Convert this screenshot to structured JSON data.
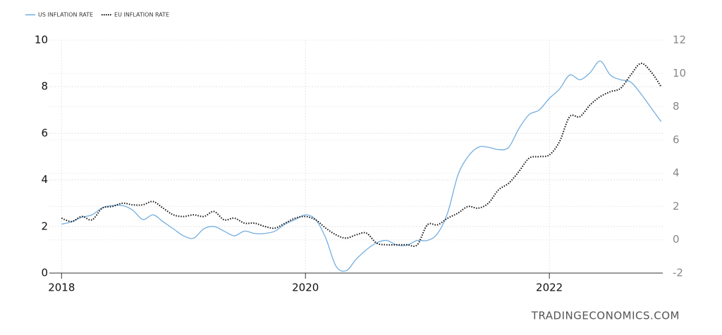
{
  "chart_data": {
    "type": "line",
    "watermark": "TRADINGECONOMICS.COM",
    "x": [
      2018,
      2018.0833,
      2018.1667,
      2018.25,
      2018.3333,
      2018.4167,
      2018.5,
      2018.5833,
      2018.6667,
      2018.75,
      2018.8333,
      2018.9167,
      2019,
      2019.0833,
      2019.1667,
      2019.25,
      2019.3333,
      2019.4167,
      2019.5,
      2019.5833,
      2019.6667,
      2019.75,
      2019.8333,
      2019.9167,
      2020,
      2020.0833,
      2020.1667,
      2020.25,
      2020.3333,
      2020.4167,
      2020.5,
      2020.5833,
      2020.6667,
      2020.75,
      2020.8333,
      2020.9167,
      2021,
      2021.0833,
      2021.1667,
      2021.25,
      2021.3333,
      2021.4167,
      2021.5,
      2021.5833,
      2021.6667,
      2021.75,
      2021.8333,
      2021.9167,
      2022,
      2022.0833,
      2022.1667,
      2022.25,
      2022.3333,
      2022.4167,
      2022.5,
      2022.5833,
      2022.6667,
      2022.75,
      2022.8333,
      2022.9167
    ],
    "series": [
      {
        "name": "US INFLATION RATE",
        "color": "#74aee0",
        "style": "solid",
        "axis": "y",
        "values": [
          2.1,
          2.2,
          2.4,
          2.5,
          2.8,
          2.9,
          2.9,
          2.7,
          2.3,
          2.5,
          2.2,
          1.9,
          1.6,
          1.5,
          1.9,
          2.0,
          1.8,
          1.6,
          1.8,
          1.7,
          1.7,
          1.8,
          2.1,
          2.3,
          2.5,
          2.3,
          1.5,
          0.3,
          0.1,
          0.6,
          1.0,
          1.3,
          1.4,
          1.2,
          1.2,
          1.4,
          1.4,
          1.7,
          2.6,
          4.2,
          5.0,
          5.4,
          5.4,
          5.3,
          5.4,
          6.2,
          6.8,
          7.0,
          7.5,
          7.9,
          8.5,
          8.3,
          8.6,
          9.1,
          8.5,
          8.3,
          8.2,
          7.7,
          7.1,
          6.5
        ]
      },
      {
        "name": "EU INFLATION RATE",
        "color": "#111111",
        "style": "dotted",
        "axis": "y2",
        "values": [
          1.3,
          1.1,
          1.4,
          1.2,
          1.9,
          2.0,
          2.2,
          2.1,
          2.1,
          2.3,
          1.9,
          1.5,
          1.4,
          1.5,
          1.4,
          1.7,
          1.2,
          1.3,
          1.0,
          1.0,
          0.8,
          0.7,
          1.0,
          1.3,
          1.4,
          1.2,
          0.7,
          0.3,
          0.1,
          0.3,
          0.4,
          -0.2,
          -0.3,
          -0.3,
          -0.3,
          -0.3,
          0.9,
          0.9,
          1.3,
          1.6,
          2.0,
          1.9,
          2.2,
          3.0,
          3.4,
          4.1,
          4.9,
          5.0,
          5.1,
          5.9,
          7.4,
          7.4,
          8.1,
          8.6,
          8.9,
          9.1,
          9.9,
          10.6,
          10.1,
          9.2
        ]
      }
    ],
    "xlim": [
      2017.9,
      2022.93
    ],
    "xticks": [
      2018,
      2020,
      2022
    ],
    "ylim": [
      0,
      10
    ],
    "yticks": [
      0,
      2,
      4,
      6,
      8,
      10
    ],
    "y2lim": [
      -2,
      12
    ],
    "y2ticks": [
      -2,
      0,
      2,
      4,
      6,
      8,
      10,
      12
    ],
    "grid": true,
    "legend": "top-left"
  }
}
